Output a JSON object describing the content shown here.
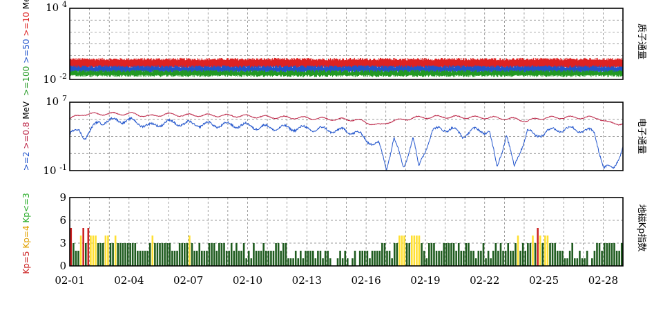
{
  "chart_data": [
    {
      "type": "line",
      "panel": "proton_flux",
      "right_label": "质子通量",
      "left_label_parts": [
        {
          "text": ">=100",
          "color": "#229922"
        },
        {
          "text": ">=50",
          "color": "#2255cc"
        },
        {
          "text": ">=10",
          "color": "#dd2222"
        },
        {
          "text": "MeV",
          "color": "#000000"
        }
      ],
      "y_scale": "log",
      "ylim": [
        0.01,
        10000
      ],
      "y_tick_labels": [
        {
          "base": "10",
          "exp": "4"
        },
        {
          "base": "10",
          "exp": "-2"
        }
      ],
      "grid": true,
      "series": [
        {
          "label": ">=10",
          "color": "#dd2222",
          "level_low": 0.1,
          "level_high": 0.5
        },
        {
          "label": ">=50",
          "color": "#2255cc",
          "level_low": 0.04,
          "level_high": 0.12
        },
        {
          "label": ">=100",
          "color": "#229922",
          "level_low": 0.02,
          "level_high": 0.05
        }
      ]
    },
    {
      "type": "line",
      "panel": "electron_flux",
      "right_label": "电子通量",
      "left_label_parts": [
        {
          "text": ">=2",
          "color": "#2255cc"
        },
        {
          "text": ">=0.8",
          "color": "#bb2244"
        },
        {
          "text": "MeV",
          "color": "#000000"
        }
      ],
      "y_scale": "log",
      "ylim": [
        0.1,
        10000000
      ],
      "y_tick_labels": [
        {
          "base": "10",
          "exp": "7"
        },
        {
          "base": "10",
          "exp": "-1"
        }
      ],
      "grid": true,
      "series": [
        {
          "label": ">=0.8",
          "color": "#bb2244",
          "x_days": [
            0,
            0.7,
            1.5,
            2.6,
            3.3,
            4.2,
            5.0,
            6.0,
            7.0,
            8.0,
            9.0,
            10.0,
            11.0,
            12.0,
            13.0,
            14.0,
            15.0,
            15.6,
            16.3,
            16.8,
            17.3,
            18.0,
            18.8,
            19.5,
            20.0,
            21.0,
            22.0,
            22.8,
            23.5,
            24.0,
            24.5,
            25.0,
            26.0,
            27.0,
            27.7,
            28.2,
            29.0
          ],
          "values": [
            120000,
            400000,
            420000,
            450000,
            440000,
            220000,
            400000,
            300000,
            300000,
            280000,
            250000,
            200000,
            170000,
            150000,
            130000,
            100000,
            90000,
            40000,
            20000,
            60000,
            80000,
            150000,
            180000,
            200000,
            190000,
            170000,
            160000,
            130000,
            100000,
            60000,
            120000,
            150000,
            170000,
            160000,
            150000,
            40000,
            30000
          ]
        },
        {
          "label": ">=2",
          "color": "#2255cc",
          "x_days": [
            0,
            0.5,
            0.8,
            1.5,
            2.6,
            3.3,
            4.2,
            5.0,
            6.0,
            7.0,
            8.0,
            9.0,
            10.0,
            11.0,
            12.0,
            13.0,
            14.0,
            15.0,
            15.6,
            16.2,
            16.6,
            17.0,
            17.5,
            18.0,
            18.3,
            19.0,
            20.0,
            20.6,
            21.0,
            22.0,
            22.4,
            22.9,
            23.3,
            24.0,
            24.4,
            25.0,
            26.0,
            27.0,
            27.5,
            28.0,
            28.5,
            29.0
          ],
          "values": [
            2000,
            5000,
            800,
            50000,
            80000,
            60000,
            15000,
            45000,
            30000,
            25000,
            22000,
            20000,
            12000,
            10000,
            9000,
            7000,
            5000,
            3500,
            300,
            120,
            0.2,
            800,
            0.2,
            900,
            0.2,
            5000,
            9000,
            1000,
            5000,
            4000,
            0.2,
            2000,
            0.2,
            6000,
            900,
            4000,
            8000,
            5000,
            3000,
            0.2,
            0.2,
            50
          ]
        }
      ]
    },
    {
      "type": "bar",
      "panel": "kp_index",
      "right_label": "地磁Kp指数",
      "left_label_parts": [
        {
          "text": "Kp=5",
          "color": "#cc2222"
        },
        {
          "text": "Kp=4",
          "color": "#e0a000"
        },
        {
          "text": "Kp<=3",
          "color": "#22aa22"
        }
      ],
      "ylim": [
        0,
        9
      ],
      "y_ticks": [
        "0",
        "3",
        "6",
        "9"
      ],
      "x_tick_labels": [
        "02-01",
        "02-04",
        "02-07",
        "02-10",
        "02-13",
        "02-16",
        "02-19",
        "02-22",
        "02-25",
        "02-28"
      ],
      "x_days_span": 28,
      "bars_per_day": 8,
      "colors": {
        "storm": "#cc2222",
        "active": "#ffe033",
        "quiet": "#1e5b1e"
      },
      "grid": true,
      "kp_values": [
        5,
        3,
        2,
        2,
        4,
        5,
        3,
        5,
        4,
        4,
        4,
        3,
        3,
        3,
        4,
        4,
        3,
        3,
        4,
        3,
        3,
        3,
        3,
        3,
        3,
        3,
        3,
        2,
        2,
        2,
        2,
        2,
        3,
        4,
        3,
        3,
        3,
        3,
        3,
        3,
        3,
        2,
        2,
        2,
        3,
        3,
        3,
        3,
        4,
        3,
        2,
        2,
        3,
        2,
        2,
        2,
        3,
        3,
        3,
        2,
        3,
        3,
        3,
        2,
        2,
        3,
        2,
        3,
        2,
        2,
        3,
        1,
        2,
        1,
        3,
        2,
        2,
        2,
        3,
        2,
        2,
        2,
        2,
        3,
        3,
        2,
        3,
        3,
        1,
        1,
        1,
        2,
        1,
        2,
        1,
        2,
        2,
        2,
        2,
        1,
        2,
        2,
        1,
        2,
        2,
        1,
        0,
        0,
        1,
        2,
        1,
        2,
        1,
        0,
        1,
        2,
        0,
        2,
        2,
        2,
        2,
        1,
        2,
        2,
        2,
        2,
        3,
        3,
        2,
        2,
        1,
        3,
        3,
        4,
        4,
        4,
        3,
        3,
        4,
        4,
        4,
        4,
        3,
        2,
        1,
        3,
        3,
        3,
        2,
        2,
        2,
        3,
        3,
        3,
        3,
        3,
        2,
        3,
        2,
        2,
        3,
        3,
        2,
        2,
        1,
        2,
        2,
        3,
        1,
        2,
        1,
        2,
        3,
        2,
        3,
        2,
        2,
        3,
        2,
        2,
        3,
        4,
        2,
        3,
        2,
        3,
        3,
        4,
        3,
        5,
        4,
        3,
        4,
        4,
        3,
        3,
        3,
        2,
        2,
        2,
        1,
        1,
        2,
        3,
        1,
        1,
        2,
        1,
        1,
        2,
        0,
        1,
        2,
        3,
        3,
        2,
        3,
        3,
        3,
        3,
        3,
        2,
        2,
        3
      ]
    }
  ]
}
